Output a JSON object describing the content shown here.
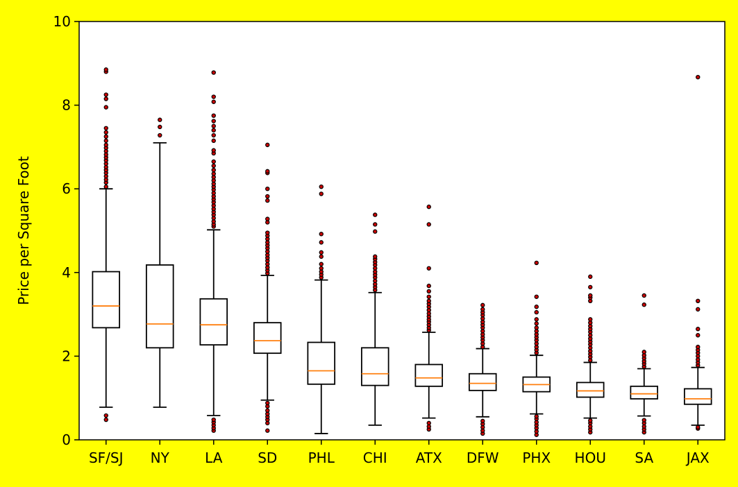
{
  "chart_data": {
    "type": "boxplot",
    "ylabel": "Price per Square Foot",
    "xlabel": "",
    "ylim": [
      0,
      10
    ],
    "yticks": [
      "0",
      "2",
      "4",
      "6",
      "8",
      "10"
    ],
    "colors": {
      "page_background": "#ffff00",
      "plot_background": "#ffffff",
      "box": "#000000",
      "median": "#ff7f0e",
      "outlier_fill": "#cc0000",
      "outlier_edge": "#000000"
    },
    "categories": [
      "SF/SJ",
      "NY",
      "LA",
      "SD",
      "PHL",
      "CHI",
      "ATX",
      "DFW",
      "PHX",
      "HOU",
      "SA",
      "JAX"
    ],
    "boxes": [
      {
        "label": "SF/SJ",
        "whislo": 0.78,
        "q1": 2.68,
        "med": 3.2,
        "q3": 4.02,
        "whishi": 6.0,
        "fliers": [
          0.48,
          0.58,
          6.05,
          6.15,
          6.22,
          6.3,
          6.38,
          6.45,
          6.52,
          6.6,
          6.68,
          6.75,
          6.82,
          6.9,
          6.98,
          7.05,
          7.15,
          7.25,
          7.35,
          7.45,
          7.95,
          8.15,
          8.25,
          8.8,
          8.85
        ]
      },
      {
        "label": "NY",
        "whislo": 0.78,
        "q1": 2.2,
        "med": 2.77,
        "q3": 4.18,
        "whishi": 7.1,
        "fliers": [
          7.28,
          7.48,
          7.65
        ]
      },
      {
        "label": "LA",
        "whislo": 0.58,
        "q1": 2.27,
        "med": 2.75,
        "q3": 3.37,
        "whishi": 5.02,
        "fliers": [
          0.22,
          0.28,
          0.35,
          0.42,
          0.48,
          5.1,
          5.15,
          5.22,
          5.3,
          5.38,
          5.45,
          5.52,
          5.6,
          5.68,
          5.75,
          5.82,
          5.9,
          5.98,
          6.05,
          6.12,
          6.2,
          6.28,
          6.36,
          6.45,
          6.55,
          6.65,
          6.85,
          6.92,
          7.15,
          7.28,
          7.4,
          7.5,
          7.62,
          7.75,
          8.08,
          8.2,
          8.78
        ]
      },
      {
        "label": "SD",
        "whislo": 0.95,
        "q1": 2.07,
        "med": 2.37,
        "q3": 2.8,
        "whishi": 3.93,
        "fliers": [
          0.22,
          0.4,
          0.48,
          0.55,
          0.62,
          0.7,
          0.8,
          0.88,
          3.98,
          4.05,
          4.12,
          4.2,
          4.28,
          4.35,
          4.42,
          4.5,
          4.58,
          4.65,
          4.72,
          4.8,
          4.88,
          4.95,
          5.2,
          5.28,
          5.72,
          5.82,
          6.0,
          6.38,
          6.42,
          7.05
        ]
      },
      {
        "label": "PHL",
        "whislo": 0.15,
        "q1": 1.33,
        "med": 1.65,
        "q3": 2.33,
        "whishi": 3.82,
        "fliers": [
          3.88,
          3.95,
          4.02,
          4.1,
          4.2,
          4.38,
          4.48,
          4.72,
          4.92,
          5.88,
          6.05
        ]
      },
      {
        "label": "CHI",
        "whislo": 0.35,
        "q1": 1.3,
        "med": 1.58,
        "q3": 2.2,
        "whishi": 3.52,
        "fliers": [
          3.58,
          3.65,
          3.72,
          3.8,
          3.88,
          3.95,
          4.02,
          4.1,
          4.18,
          4.25,
          4.32,
          4.38,
          4.98,
          5.15,
          5.38
        ]
      },
      {
        "label": "ATX",
        "whislo": 0.52,
        "q1": 1.28,
        "med": 1.48,
        "q3": 1.8,
        "whishi": 2.57,
        "fliers": [
          0.25,
          0.32,
          0.4,
          2.62,
          2.68,
          2.75,
          2.82,
          2.88,
          2.95,
          3.02,
          3.1,
          3.18,
          3.25,
          3.32,
          3.42,
          3.55,
          3.68,
          4.1,
          5.15,
          5.57
        ]
      },
      {
        "label": "DFW",
        "whislo": 0.55,
        "q1": 1.18,
        "med": 1.35,
        "q3": 1.58,
        "whishi": 2.18,
        "fliers": [
          0.15,
          0.22,
          0.3,
          0.38,
          0.45,
          2.22,
          2.3,
          2.38,
          2.45,
          2.52,
          2.6,
          2.68,
          2.75,
          2.82,
          2.9,
          2.98,
          3.05,
          3.12,
          3.22
        ]
      },
      {
        "label": "PHX",
        "whislo": 0.62,
        "q1": 1.15,
        "med": 1.32,
        "q3": 1.5,
        "whishi": 2.02,
        "fliers": [
          0.12,
          0.2,
          0.28,
          0.35,
          0.42,
          0.5,
          0.56,
          2.08,
          2.15,
          2.22,
          2.3,
          2.38,
          2.45,
          2.52,
          2.6,
          2.68,
          2.78,
          2.88,
          3.05,
          3.18,
          3.42,
          4.23
        ]
      },
      {
        "label": "HOU",
        "whislo": 0.52,
        "q1": 1.02,
        "med": 1.17,
        "q3": 1.37,
        "whishi": 1.85,
        "fliers": [
          0.18,
          0.25,
          0.32,
          0.4,
          0.46,
          1.9,
          1.98,
          2.05,
          2.12,
          2.2,
          2.28,
          2.35,
          2.42,
          2.5,
          2.58,
          2.65,
          2.72,
          2.8,
          2.88,
          3.32,
          3.4,
          3.45,
          3.65,
          3.9
        ]
      },
      {
        "label": "SA",
        "whislo": 0.57,
        "q1": 0.98,
        "med": 1.1,
        "q3": 1.28,
        "whishi": 1.7,
        "fliers": [
          0.18,
          0.25,
          0.32,
          0.4,
          0.47,
          1.75,
          1.82,
          1.88,
          1.95,
          2.02,
          2.1,
          3.23,
          3.45
        ]
      },
      {
        "label": "JAX",
        "whislo": 0.35,
        "q1": 0.85,
        "med": 0.98,
        "q3": 1.22,
        "whishi": 1.73,
        "fliers": [
          0.27,
          0.3,
          1.78,
          1.85,
          1.92,
          2.0,
          2.08,
          2.15,
          2.22,
          2.5,
          2.65,
          3.12,
          3.32,
          8.67
        ]
      }
    ]
  }
}
